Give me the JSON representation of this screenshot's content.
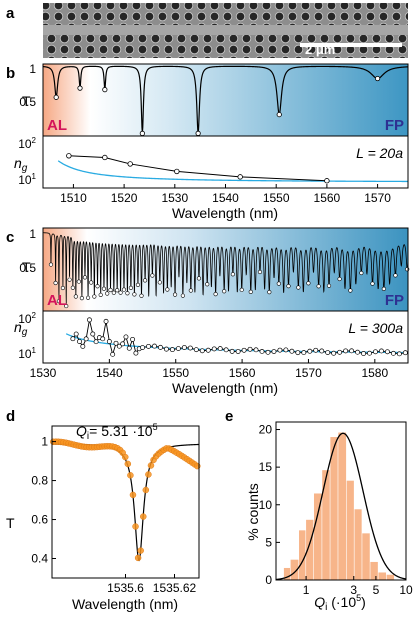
{
  "panel_letters": {
    "a": "a",
    "b": "b",
    "c": "c",
    "d": "d",
    "e": "e"
  },
  "sem": {
    "scale_bar_label": "2 μm"
  },
  "colors": {
    "al": "#d4145a",
    "fp": "#2e3192",
    "fit": "#29abe2",
    "data": "#000000",
    "d_points": "#f7931e",
    "hist": "#f7b58a"
  },
  "chart_data": [
    {
      "id": "b-transmission",
      "type": "line",
      "ylabel": "T",
      "region_labels": {
        "left": "AL",
        "right": "FP"
      },
      "xlim": [
        1504,
        1576
      ],
      "ylim": [
        0.1,
        1.02
      ],
      "yticks": [
        "1",
        "0.5"
      ],
      "dips": [
        {
          "x": 1506.6,
          "depth": 0.4,
          "width": 0.35
        },
        {
          "x": 1511.3,
          "depth": 0.28,
          "width": 0.18
        },
        {
          "x": 1516.2,
          "depth": 0.3,
          "width": 0.18
        },
        {
          "x": 1523.6,
          "depth": 0.86,
          "width": 0.25
        },
        {
          "x": 1534.6,
          "depth": 0.86,
          "width": 0.32
        },
        {
          "x": 1550.6,
          "depth": 0.62,
          "width": 0.55
        },
        {
          "x": 1570.0,
          "depth": 0.16,
          "width": 1.6
        }
      ]
    },
    {
      "id": "b-group-index",
      "type": "scatter",
      "ylabel": "n_g",
      "annotation": "L = 20a",
      "xlim": [
        1504,
        1576
      ],
      "ylog": true,
      "ylim": [
        5,
        100
      ],
      "yticks": [
        "10^2",
        "10^1"
      ],
      "xticks": [
        "1510",
        "1520",
        "1530",
        "1540",
        "1550",
        "1560",
        "1570"
      ],
      "xlabel": "Wavelength (nm)",
      "points": [
        [
          1509.1,
          32
        ],
        [
          1516.2,
          29
        ],
        [
          1521.2,
          20
        ],
        [
          1530.4,
          13
        ],
        [
          1542.9,
          9.5
        ],
        [
          1560.0,
          7.6
        ]
      ],
      "fit": {
        "asym": 7,
        "A": 190,
        "x0": 1502,
        "p": 1.5
      }
    },
    {
      "id": "c-transmission",
      "type": "line",
      "ylabel": "T",
      "region_labels": {
        "left": "AL",
        "right": "FP"
      },
      "xlim": [
        1530,
        1585
      ],
      "ylim": [
        0.1,
        1.02
      ],
      "yticks": [
        "1",
        "0.5"
      ],
      "comb_start": 1534.5,
      "comb_end": 1585,
      "comb_spacing_start": 0.45,
      "comb_spacing_end": 0.9
    },
    {
      "id": "c-group-index",
      "type": "scatter",
      "ylabel": "n_g",
      "annotation": "L = 300a",
      "xlim": [
        1530,
        1585
      ],
      "ylog": true,
      "ylim": [
        5,
        100
      ],
      "yticks": [
        "10^2",
        "10^1"
      ],
      "xticks": [
        "1530",
        "1540",
        "1550",
        "1560",
        "1570",
        "1580"
      ],
      "xlabel": "Wavelength (nm)",
      "fit": {
        "asym": 7.5,
        "A": 60,
        "x0": 1530,
        "p": 0.9
      }
    },
    {
      "id": "d-resonance",
      "type": "scatter",
      "ylabel": "T",
      "annotation": "Q_i= 5.31 ·10^5",
      "xlim": [
        1535.57,
        1535.63
      ],
      "ylim": [
        0.3,
        1.08
      ],
      "yticks": [
        "1",
        "0.8",
        "0.6",
        "0.4"
      ],
      "xticks": [
        "1535.6",
        "1535.62"
      ],
      "xlabel": "Wavelength (nm)",
      "lorentz": {
        "x0": 1535.6055,
        "depth": 0.6,
        "hw": 0.0022
      }
    },
    {
      "id": "e-histogram",
      "type": "bar",
      "ylabel": "% counts",
      "xlabel": "Q_i (·10^5)",
      "xlog": true,
      "xlim": [
        0.5,
        10
      ],
      "ylim": [
        0,
        21
      ],
      "yticks": [
        "0",
        "5",
        "10",
        "15",
        "20"
      ],
      "xticks": [
        "1",
        "3",
        "5",
        "10"
      ],
      "bins": [
        {
          "lo": 0.6,
          "hi": 0.7,
          "v": 1.6
        },
        {
          "lo": 0.7,
          "hi": 0.85,
          "v": 2.7
        },
        {
          "lo": 0.85,
          "hi": 1.0,
          "v": 6.6
        },
        {
          "lo": 1.0,
          "hi": 1.2,
          "v": 8.0
        },
        {
          "lo": 1.2,
          "hi": 1.45,
          "v": 11.5
        },
        {
          "lo": 1.45,
          "hi": 1.75,
          "v": 14.6
        },
        {
          "lo": 1.75,
          "hi": 2.1,
          "v": 19.0
        },
        {
          "lo": 2.1,
          "hi": 2.55,
          "v": 19.6
        },
        {
          "lo": 2.55,
          "hi": 3.05,
          "v": 13.2
        },
        {
          "lo": 3.05,
          "hi": 3.65,
          "v": 9.4
        },
        {
          "lo": 3.65,
          "hi": 4.4,
          "v": 6.2
        },
        {
          "lo": 4.4,
          "hi": 5.3,
          "v": 2.4
        },
        {
          "lo": 5.3,
          "hi": 6.4,
          "v": 1.0
        },
        {
          "lo": 6.4,
          "hi": 7.7,
          "v": 0.7
        }
      ],
      "gaussian": {
        "peak": 19.5,
        "center_log": 0.37,
        "sigma_log": 0.2
      }
    }
  ]
}
